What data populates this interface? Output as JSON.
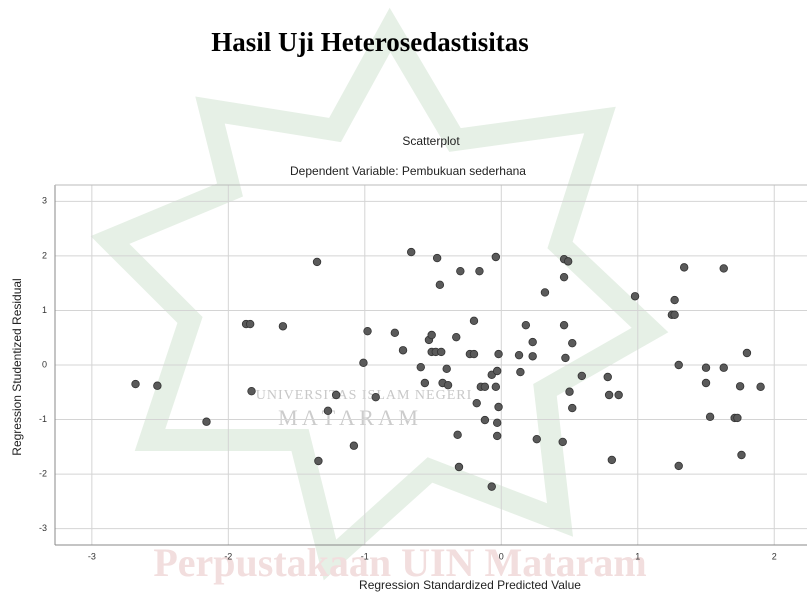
{
  "header": {
    "title": "Hasil Uji Heterosedastisitas"
  },
  "watermark": {
    "university": "UNIVERSITAS ISLAM NEGERI",
    "city": "M A T A R A M",
    "library": "Perpustakaan UIN Mataram"
  },
  "chart_data": {
    "type": "scatter",
    "title": "Scatterplot",
    "subtitle": "Dependent Variable: Pembukuan sederhana",
    "x_label": "Regression Standardized Predicted Value",
    "y_label": "Regression Studentized Residual",
    "color": "#5a5a5a",
    "grid": true,
    "xlim": [
      -3.27,
      2.24
    ],
    "ylim": [
      -3.3,
      3.3
    ],
    "xticks": [
      -3,
      -2,
      -1,
      0,
      1,
      2
    ],
    "yticks": [
      -3,
      -2,
      -1,
      0,
      1,
      2,
      3
    ],
    "x": [
      -2.68,
      -2.52,
      -2.16,
      -1.87,
      -1.84,
      -1.83,
      -1.6,
      -1.35,
      -1.34,
      -1.27,
      -1.21,
      -1.08,
      -1.01,
      -0.98,
      -0.92,
      -0.78,
      -0.72,
      -0.66,
      -0.59,
      -0.56,
      -0.53,
      -0.51,
      -0.51,
      -0.48,
      -0.45,
      -0.47,
      -0.44,
      -0.43,
      -0.4,
      -0.39,
      -0.33,
      -0.32,
      -0.31,
      -0.3,
      -0.23,
      -0.2,
      -0.2,
      -0.18,
      -0.16,
      -0.15,
      -0.12,
      -0.12,
      -0.07,
      -0.07,
      -0.04,
      -0.04,
      -0.03,
      -0.03,
      -0.02,
      -0.03,
      -0.02,
      0.13,
      0.14,
      0.18,
      0.23,
      0.23,
      0.26,
      0.32,
      0.46,
      0.49,
      0.46,
      0.47,
      0.46,
      0.45,
      0.5,
      0.52,
      0.52,
      0.59,
      0.78,
      0.79,
      0.81,
      0.86,
      0.98,
      1.27,
      1.25,
      1.27,
      1.3,
      1.3,
      1.34,
      1.5,
      1.5,
      1.53,
      1.63,
      1.63,
      1.71,
      1.73,
      1.75,
      1.76,
      1.8,
      1.9
    ],
    "values": [
      -0.35,
      -0.38,
      -1.04,
      0.75,
      0.75,
      -0.48,
      0.71,
      1.89,
      -1.76,
      -0.84,
      -0.55,
      -1.48,
      0.04,
      0.62,
      -0.59,
      0.59,
      0.27,
      2.07,
      -0.04,
      -0.33,
      0.46,
      0.24,
      0.55,
      0.24,
      1.47,
      1.96,
      0.24,
      -0.33,
      -0.07,
      -0.37,
      0.51,
      -1.28,
      -1.87,
      1.72,
      0.2,
      0.2,
      0.81,
      -0.7,
      1.72,
      -0.4,
      -1.01,
      -0.4,
      -0.18,
      -2.23,
      -0.4,
      1.98,
      -0.11,
      -1.06,
      0.2,
      -1.3,
      -0.77,
      0.18,
      -0.13,
      0.73,
      0.42,
      0.16,
      -1.36,
      1.33,
      1.94,
      1.9,
      1.61,
      0.13,
      0.73,
      -1.41,
      -0.49,
      0.4,
      -0.79,
      -0.2,
      -0.22,
      -0.55,
      -1.74,
      -0.55,
      1.26,
      1.19,
      0.92,
      0.92,
      0,
      -1.85,
      1.79,
      -0.05,
      -0.33,
      -0.95,
      -0.05,
      1.77,
      -0.97,
      -0.97,
      -0.39,
      -1.65,
      0.22,
      -0.4
    ]
  }
}
